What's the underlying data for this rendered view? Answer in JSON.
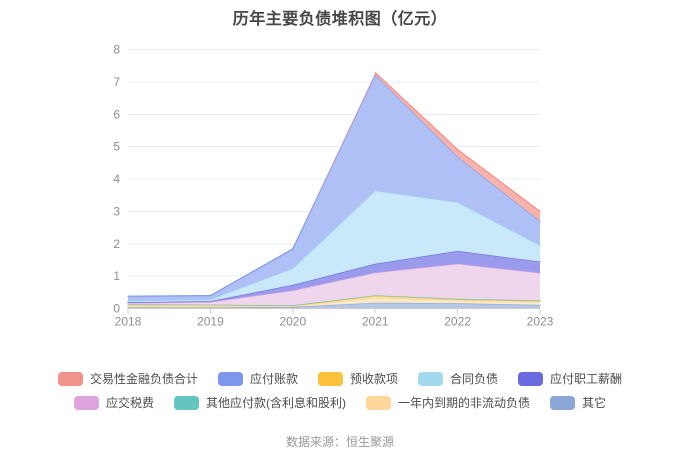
{
  "chart_data": {
    "type": "area",
    "stacked": true,
    "title": "历年主要负债堆积图（亿元）",
    "source": "数据来源：恒生聚源",
    "x": [
      "2018",
      "2019",
      "2020",
      "2021",
      "2022",
      "2023"
    ],
    "ylim": [
      0,
      8
    ],
    "y_ticks": [
      0,
      1,
      2,
      3,
      4,
      5,
      6,
      7,
      8
    ],
    "grid": true,
    "legend_position": "bottom",
    "series": [
      {
        "label": "其它",
        "color": "#8BA7D7",
        "fill": "#B5C6E6",
        "values": [
          0.04,
          0.04,
          0.05,
          0.18,
          0.16,
          0.11
        ]
      },
      {
        "label": "一年内到期的非流动负债",
        "color": "#FFD699",
        "fill": "#FBE8C8",
        "values": [
          0.02,
          0.02,
          0.02,
          0.15,
          0.1,
          0.1
        ]
      },
      {
        "label": "预收款项",
        "color": "#FBC13C",
        "fill": "#FAE0A6",
        "values": [
          0.06,
          0.05,
          0.02,
          0.06,
          0.02,
          0.02
        ]
      },
      {
        "label": "其他应付款(含利息和股利)",
        "color": "#63C4C0",
        "fill": "#ABDFDC",
        "values": [
          0.01,
          0.01,
          0.01,
          0.02,
          0.02,
          0.02
        ]
      },
      {
        "label": "应交税费",
        "color": "#DFA4DE",
        "fill": "#EFD6ED",
        "values": [
          0.04,
          0.08,
          0.46,
          0.7,
          1.08,
          0.85
        ]
      },
      {
        "label": "应付职工薪酬",
        "color": "#6B6BE0",
        "fill": "#9B9BEE",
        "values": [
          0.02,
          0.03,
          0.17,
          0.27,
          0.4,
          0.35
        ]
      },
      {
        "label": "合同负债",
        "color": "#A3D8F1",
        "fill": "#C9E9FA",
        "values": [
          0.04,
          0.05,
          0.51,
          2.26,
          1.5,
          0.5
        ]
      },
      {
        "label": "应付账款",
        "color": "#7E97EE",
        "fill": "#AFC0F6",
        "values": [
          0.15,
          0.12,
          0.6,
          3.58,
          1.41,
          0.75
        ]
      },
      {
        "label": "交易性金融负债合计",
        "color": "#F2938A",
        "fill": "#F7B2AB",
        "values": [
          0.0,
          0.0,
          0.0,
          0.07,
          0.22,
          0.3
        ]
      }
    ],
    "legend_rows": [
      [
        8,
        7,
        2,
        6,
        5
      ],
      [
        4,
        3,
        1,
        0
      ]
    ],
    "colors": {
      "grid_line": "#E7ECF6",
      "axis_line": "#CBCBCB",
      "axis_label": "#8E8E8E"
    }
  }
}
